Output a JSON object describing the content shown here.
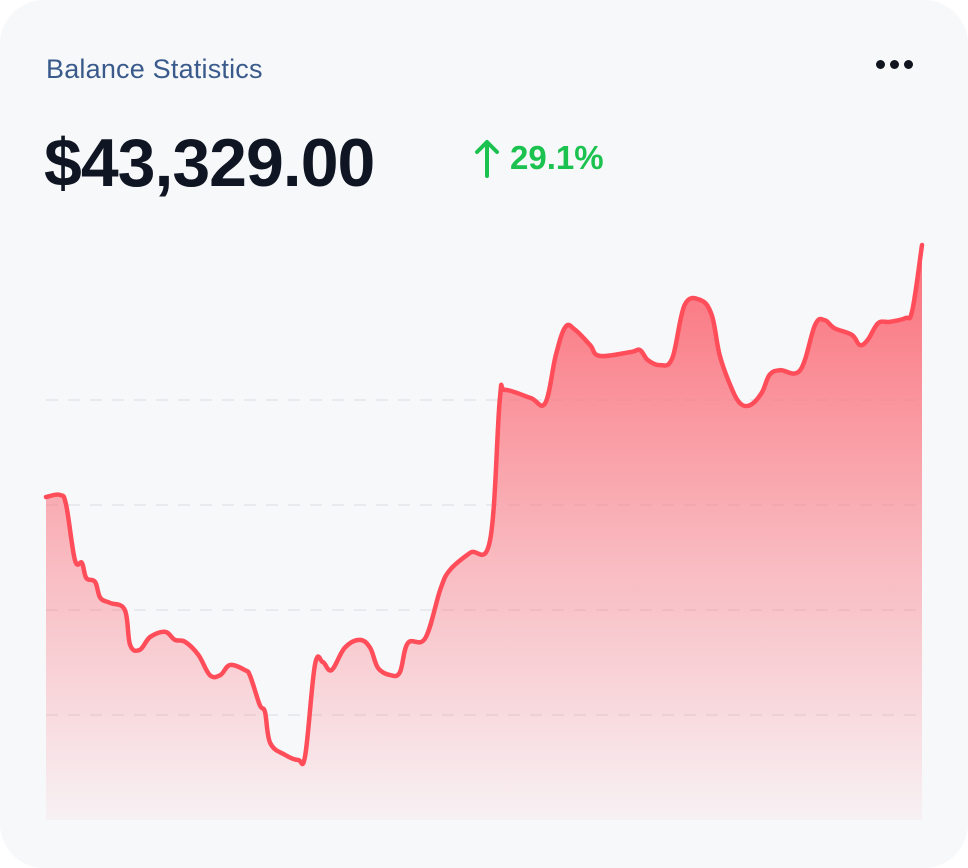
{
  "card": {
    "title": "Balance Statistics",
    "menu_icon": "more-horizontal-icon",
    "balance": "$43,329.00",
    "change": {
      "icon": "arrow-up-icon",
      "direction": "up",
      "value": "29.1%",
      "color": "#1cc24f"
    }
  },
  "chart_data": {
    "type": "area",
    "title": "",
    "xlabel": "",
    "ylabel": "",
    "xlim": [
      0,
      100
    ],
    "ylim": [
      0,
      140
    ],
    "grid": true,
    "gridlines_y": [
      25,
      50,
      75,
      100
    ],
    "line_color": "#ff4d5a",
    "fill_color": "#fb6f7a",
    "points": [
      [
        0,
        76.9
      ],
      [
        1.6,
        77.4
      ],
      [
        2.3,
        75.0
      ],
      [
        3.3,
        61.9
      ],
      [
        4.1,
        61.2
      ],
      [
        4.6,
        57.6
      ],
      [
        5.6,
        56.7
      ],
      [
        6.2,
        52.9
      ],
      [
        7.3,
        51.7
      ],
      [
        9.0,
        50.0
      ],
      [
        9.6,
        41.7
      ],
      [
        10.7,
        40.5
      ],
      [
        11.9,
        43.6
      ],
      [
        13.6,
        44.8
      ],
      [
        14.7,
        42.9
      ],
      [
        15.9,
        42.4
      ],
      [
        17.4,
        39.3
      ],
      [
        18.7,
        34.5
      ],
      [
        19.9,
        34.5
      ],
      [
        21.0,
        36.9
      ],
      [
        22.7,
        35.7
      ],
      [
        23.3,
        34.3
      ],
      [
        24.4,
        27.4
      ],
      [
        25.0,
        25.7
      ],
      [
        25.6,
        18.3
      ],
      [
        27.3,
        15.5
      ],
      [
        28.8,
        14.3
      ],
      [
        29.6,
        15.5
      ],
      [
        30.7,
        36.9
      ],
      [
        31.6,
        37.6
      ],
      [
        32.6,
        35.7
      ],
      [
        34.1,
        41.0
      ],
      [
        35.8,
        42.9
      ],
      [
        37.0,
        41.0
      ],
      [
        37.9,
        36.2
      ],
      [
        39.3,
        34.5
      ],
      [
        40.4,
        35.2
      ],
      [
        41.3,
        42.1
      ],
      [
        43.3,
        43.3
      ],
      [
        45.0,
        54.8
      ],
      [
        46.1,
        59.5
      ],
      [
        48.4,
        63.6
      ],
      [
        50.7,
        66.7
      ],
      [
        51.8,
        100
      ],
      [
        52.4,
        102.4
      ],
      [
        55.3,
        100.5
      ],
      [
        57.0,
        99.3
      ],
      [
        58.2,
        110.7
      ],
      [
        59.3,
        117.4
      ],
      [
        60.4,
        116.7
      ],
      [
        62.1,
        113.1
      ],
      [
        63.2,
        110.5
      ],
      [
        66.7,
        111.4
      ],
      [
        67.8,
        111.9
      ],
      [
        68.7,
        109.5
      ],
      [
        70.1,
        108.3
      ],
      [
        71.5,
        110.0
      ],
      [
        72.9,
        122.6
      ],
      [
        74.7,
        123.8
      ],
      [
        76.0,
        120.2
      ],
      [
        76.9,
        110.7
      ],
      [
        78.1,
        103.6
      ],
      [
        79.2,
        99.3
      ],
      [
        80.4,
        98.8
      ],
      [
        81.7,
        101.7
      ],
      [
        82.6,
        106.0
      ],
      [
        83.8,
        107.1
      ],
      [
        86.1,
        107.1
      ],
      [
        87.8,
        117.9
      ],
      [
        88.9,
        119.0
      ],
      [
        90.0,
        117.1
      ],
      [
        92.0,
        115.5
      ],
      [
        92.9,
        113.1
      ],
      [
        93.8,
        114.3
      ],
      [
        95.0,
        118.3
      ],
      [
        96.3,
        118.6
      ],
      [
        98.1,
        119.5
      ],
      [
        98.9,
        121.4
      ],
      [
        100,
        136.9
      ]
    ]
  }
}
